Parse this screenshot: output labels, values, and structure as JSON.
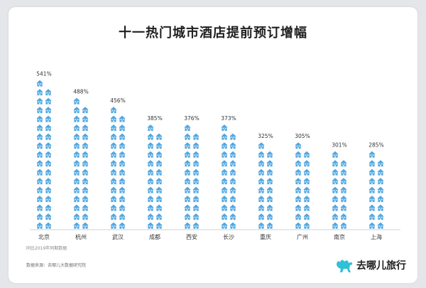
{
  "title": "十一热门城市酒店提前预订增幅",
  "footnote": "同比2019年同期数据",
  "source": "数据来源：去哪儿大数据研究院",
  "brand": {
    "name": "去哪儿旅行",
    "logo": "camel-logo-icon",
    "color": "#2fc1d6"
  },
  "colors": {
    "icon": "#52a7e0",
    "icon_light": "#bfe0f6",
    "axis": "#d0d0d0"
  },
  "chart_data": {
    "type": "bar",
    "categories": [
      "北京",
      "杭州",
      "武汉",
      "成都",
      "西安",
      "长沙",
      "重庆",
      "广州",
      "南京",
      "上海"
    ],
    "values": [
      541,
      488,
      456,
      385,
      376,
      373,
      325,
      305,
      301,
      285
    ],
    "value_labels": [
      "541%",
      "488%",
      "456%",
      "385%",
      "376%",
      "373%",
      "325%",
      "305%",
      "301%",
      "285%"
    ],
    "unit": "%",
    "mark": "house-icon",
    "ylim": [
      0,
      541
    ],
    "xlabel": "",
    "ylabel": ""
  }
}
